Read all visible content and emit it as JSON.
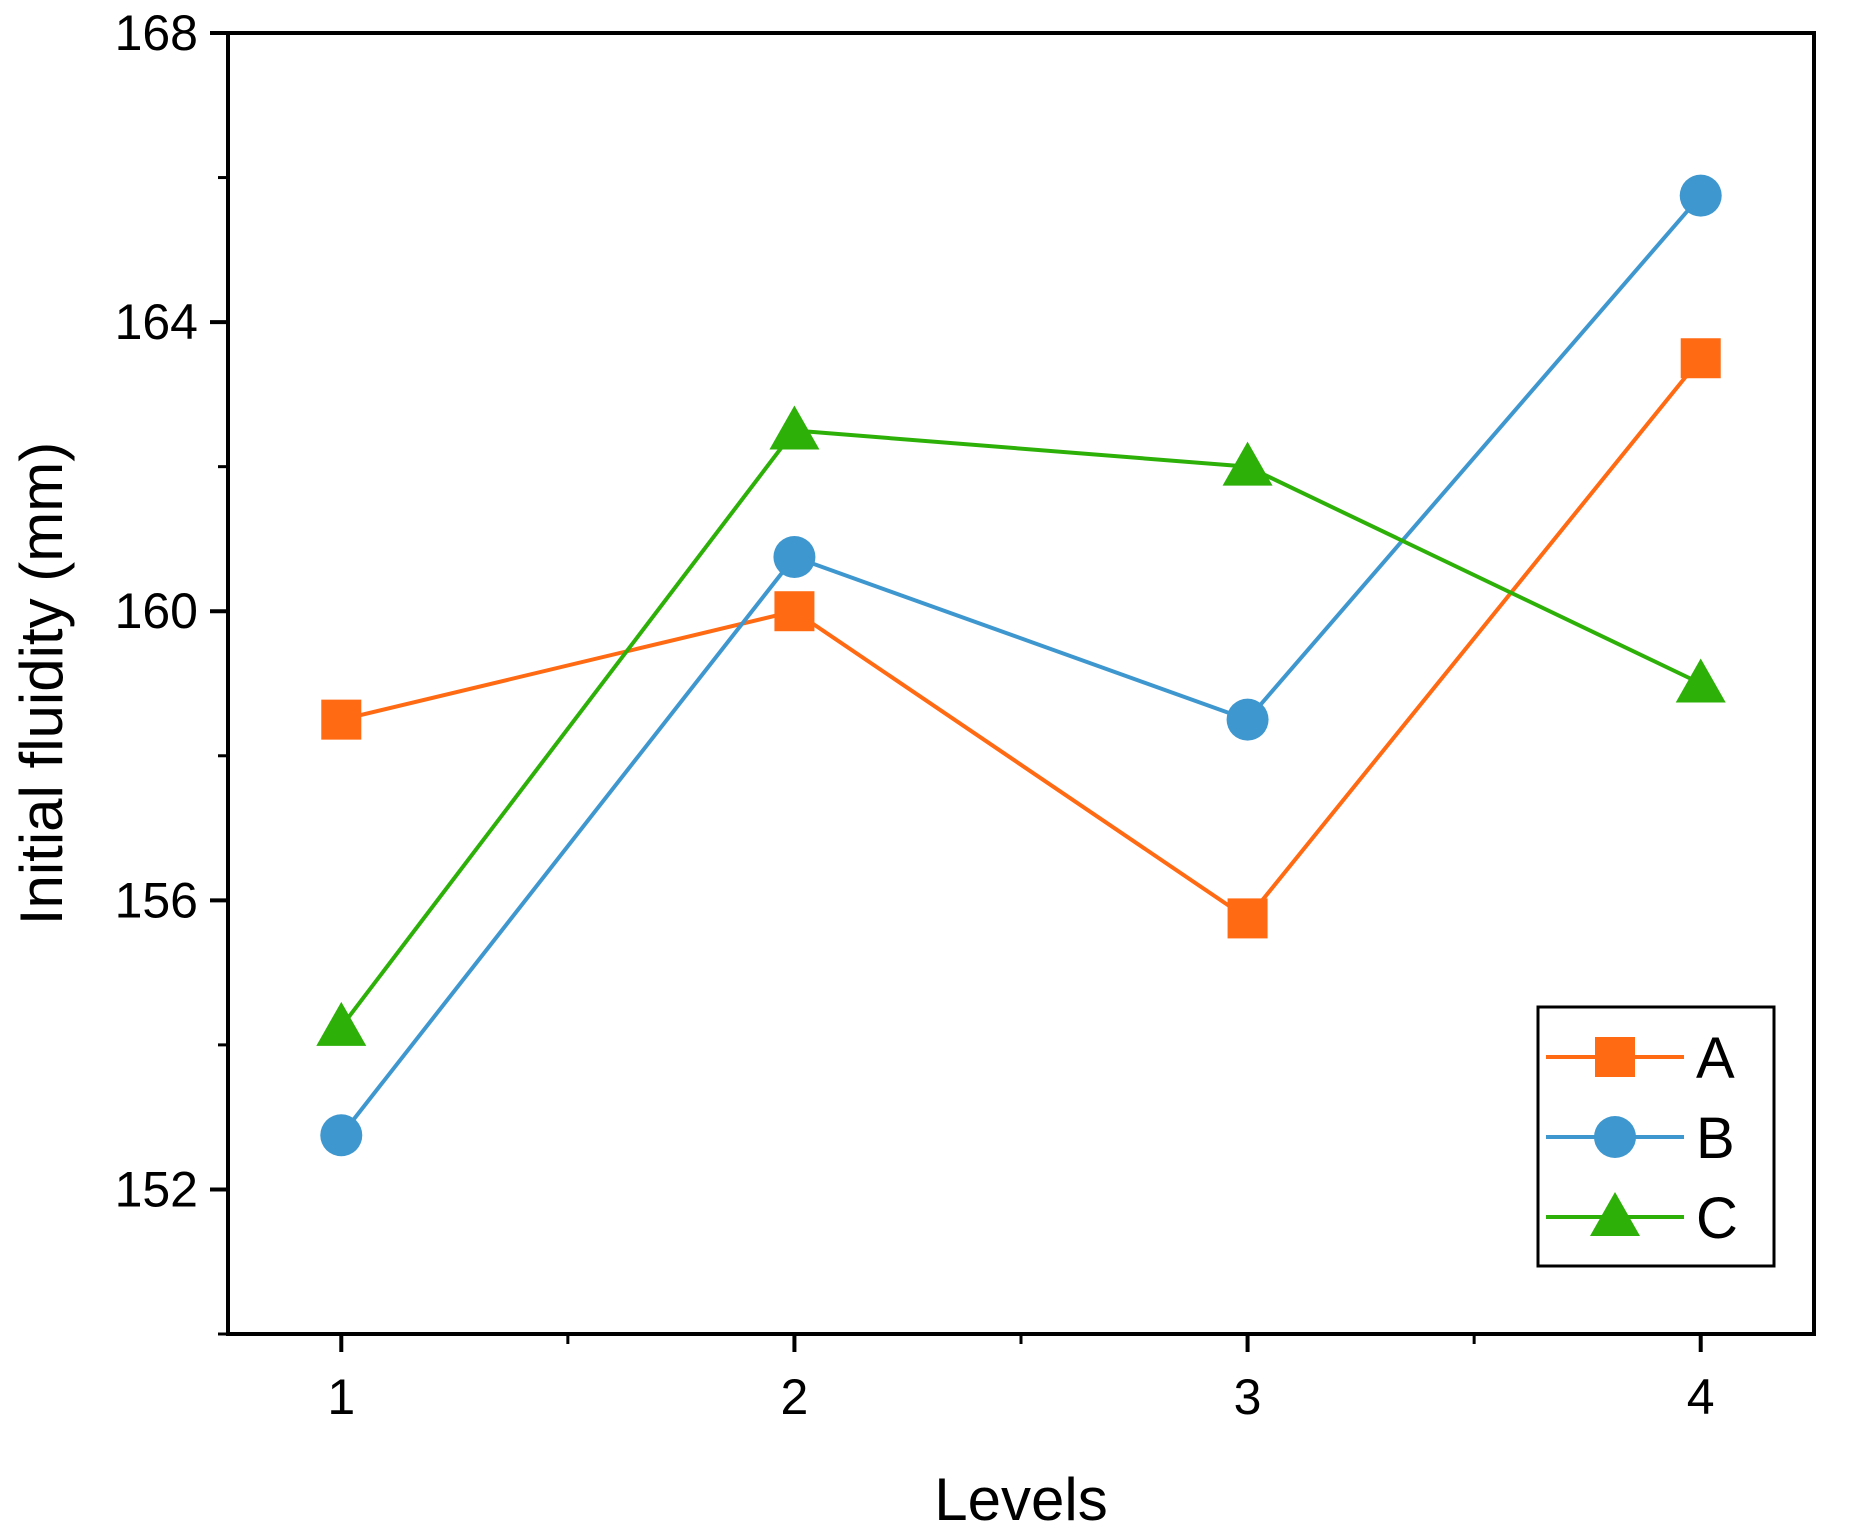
{
  "chart_data": {
    "type": "line",
    "title": "",
    "xlabel": "Levels",
    "ylabel": "Initial fluidity (mm)",
    "x": [
      1,
      2,
      3,
      4
    ],
    "x_tick_labels": [
      "1",
      "2",
      "3",
      "4"
    ],
    "xlim": [
      0.75,
      4.25
    ],
    "ylim": [
      150,
      168
    ],
    "y_ticks": [
      152,
      156,
      160,
      164,
      168
    ],
    "y_tick_labels": [
      "152",
      "156",
      "160",
      "164",
      "168"
    ],
    "grid": false,
    "legend_position": "bottom-right",
    "series": [
      {
        "name": "A",
        "marker": "square",
        "color": "#FF6A13",
        "values": [
          158.5,
          160.0,
          155.75,
          163.5
        ]
      },
      {
        "name": "B",
        "marker": "circle",
        "color": "#3F97CF",
        "values": [
          152.75,
          160.75,
          158.5,
          165.75
        ]
      },
      {
        "name": "C",
        "marker": "triangle",
        "color": "#2DB008",
        "values": [
          154.25,
          162.5,
          162.0,
          159.0
        ]
      }
    ]
  }
}
